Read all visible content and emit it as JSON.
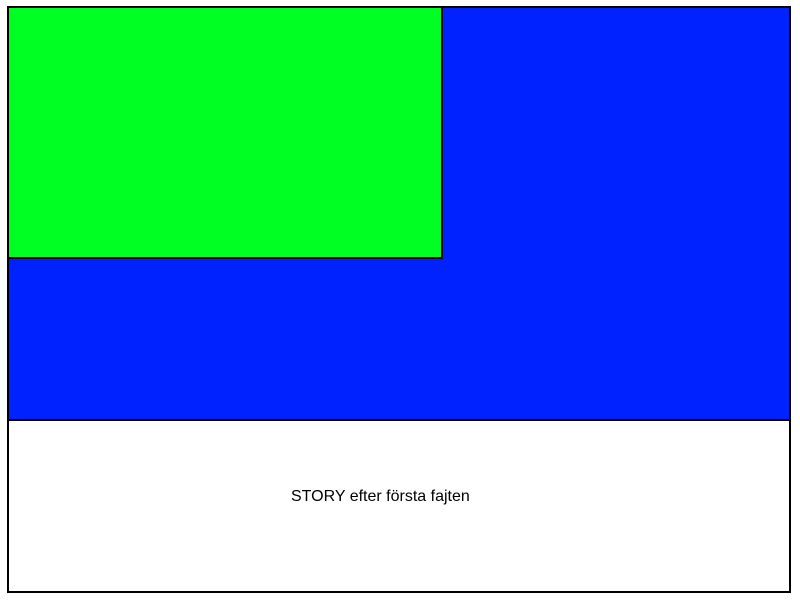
{
  "scene": {
    "background_color": "#0022ff",
    "panel_color": "#00ff22"
  },
  "caption": {
    "text": "STORY efter första fajten"
  }
}
